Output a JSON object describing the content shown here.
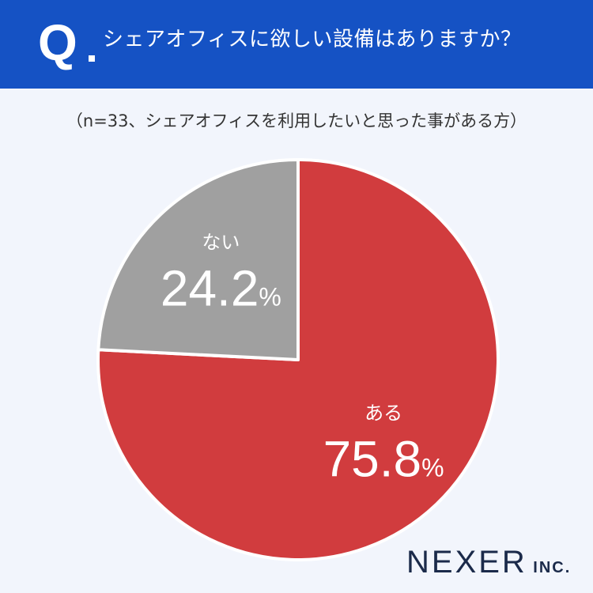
{
  "header": {
    "q_label": "Q",
    "question": "シェアオフィスに欲しい設備はありますか？"
  },
  "subtitle": "（n=33、シェアオフィスを利用したいと思った事がある方）",
  "logo": {
    "main": "NEXER",
    "sub": "INC."
  },
  "colors": {
    "header_bg": "#1552c4",
    "yes": "#d13c3e",
    "no": "#a0a0a0"
  },
  "chart_data": {
    "type": "pie",
    "unit": "%",
    "slices": [
      {
        "label": "ある",
        "value": 75.8,
        "display": "75.8",
        "color": "#d13c3e"
      },
      {
        "label": "ない",
        "value": 24.2,
        "display": "24.2",
        "color": "#a0a0a0"
      }
    ]
  }
}
